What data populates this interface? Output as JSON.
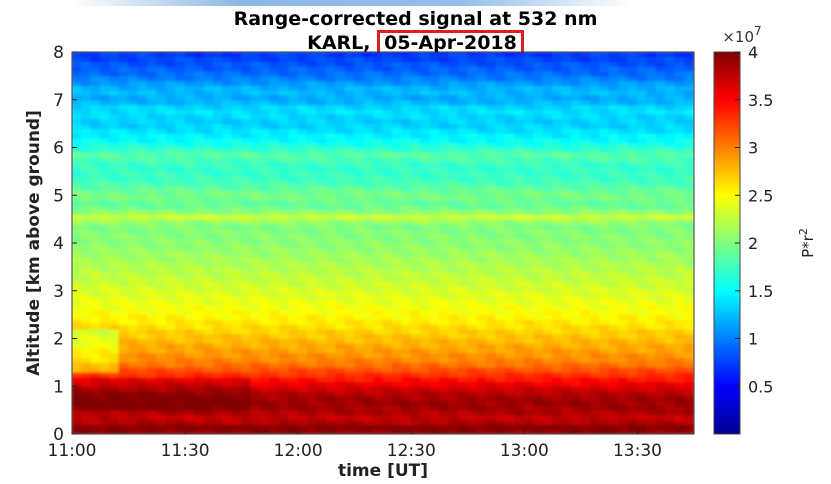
{
  "chart_data": {
    "type": "heatmap",
    "title": "Range-corrected signal at 532 nm",
    "subtitle_prefix": "KARL,",
    "subtitle_date": "05-Apr-2018",
    "xlabel": "time [UT]",
    "ylabel": "Altitude [km above ground]",
    "xlim": [
      "11:00",
      "13:45"
    ],
    "ylim": [
      0,
      8
    ],
    "x_ticks": [
      "11:00",
      "11:30",
      "12:00",
      "12:30",
      "13:00",
      "13:30"
    ],
    "y_ticks": [
      0,
      1,
      2,
      3,
      4,
      5,
      6,
      7,
      8
    ],
    "colorbar": {
      "label": "P*r^2",
      "exponent_label": "×10^7",
      "range": [
        0,
        4
      ],
      "ticks": [
        0.5,
        1,
        1.5,
        2,
        2.5,
        3,
        3.5,
        4
      ],
      "colormap": "jet"
    },
    "profile": {
      "altitude_km": [
        0,
        0.15,
        0.3,
        0.5,
        0.7,
        0.9,
        1.1,
        1.3,
        1.5,
        1.8,
        2.1,
        2.5,
        3.0,
        3.5,
        4.0,
        4.4,
        4.55,
        4.7,
        4.85,
        5.0,
        5.3,
        5.6,
        5.85,
        6.1,
        6.5,
        6.8,
        7.0,
        7.2,
        7.5,
        7.8,
        8.0
      ],
      "value_x1e7": [
        3.9,
        4.0,
        3.7,
        3.85,
        3.9,
        3.75,
        3.5,
        3.25,
        3.0,
        2.85,
        2.7,
        2.5,
        2.35,
        2.2,
        2.05,
        2.0,
        2.3,
        1.95,
        1.9,
        2.0,
        1.75,
        1.7,
        1.85,
        1.55,
        1.3,
        1.4,
        1.15,
        1.25,
        0.95,
        0.8,
        0.7
      ]
    }
  }
}
